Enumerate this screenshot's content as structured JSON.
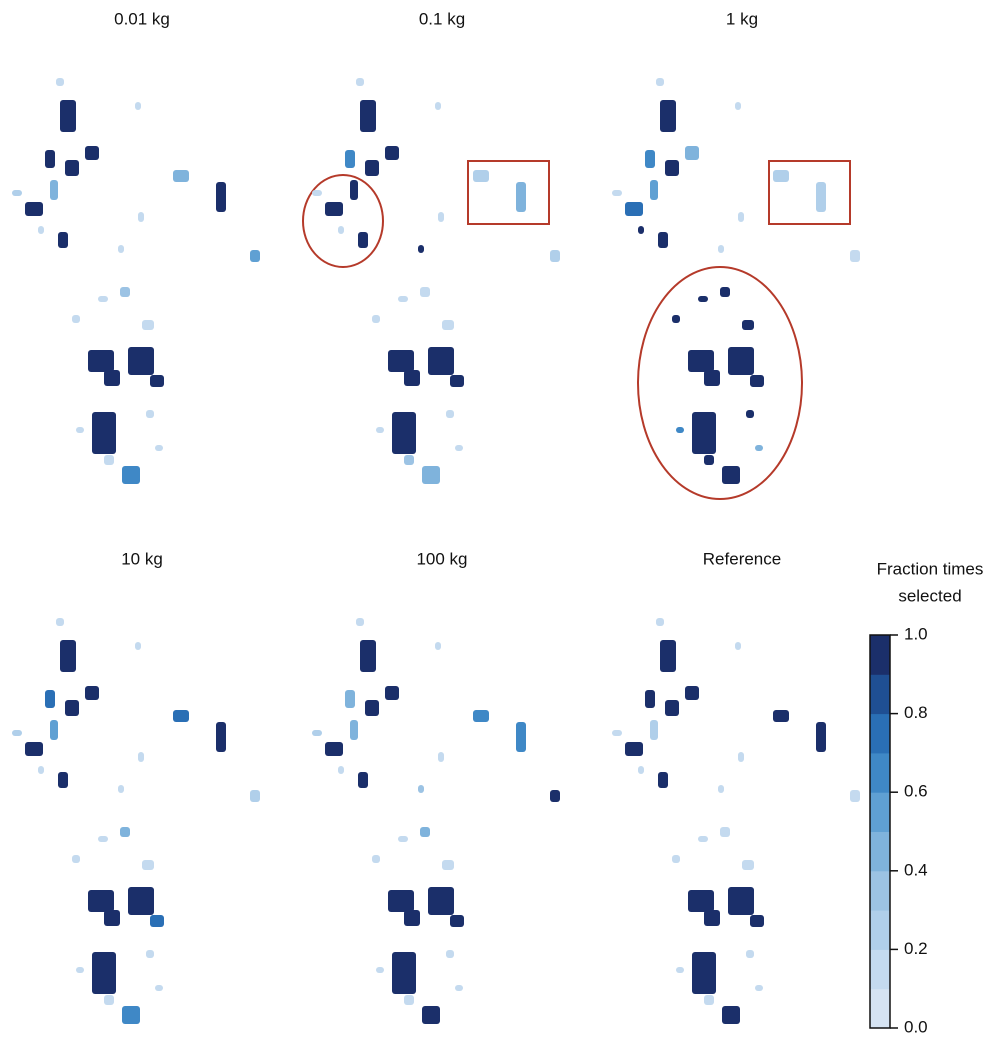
{
  "panels": [
    {
      "title": "0.01 kg",
      "values": [
        1,
        1,
        1,
        1,
        0.4,
        1,
        1,
        0.4,
        1,
        0.5,
        0.3,
        1,
        1,
        1,
        1,
        1,
        0.6,
        0.1,
        0.1,
        0.2,
        0.1,
        0.1,
        0.1,
        0.1,
        0.1,
        0.1,
        0.1,
        0.1,
        0.1,
        0.1
      ]
    },
    {
      "title": "0.1 kg",
      "values": [
        1,
        0.6,
        1,
        1,
        1,
        1,
        1,
        0.2,
        0.4,
        0.2,
        0.1,
        1,
        1,
        1,
        1,
        1,
        0.4,
        0.1,
        0.1,
        0.1,
        0.1,
        0.1,
        0.1,
        0.1,
        0.1,
        0.1,
        0.1,
        0.1,
        1,
        0.3
      ]
    },
    {
      "title": "1 kg",
      "values": [
        1,
        0.6,
        1,
        0.4,
        0.5,
        0.7,
        1,
        0.2,
        0.2,
        0.1,
        1,
        1,
        1,
        1,
        1,
        1,
        1,
        0.1,
        0.1,
        0.1,
        0.1,
        1,
        1,
        1,
        0.6,
        1,
        0.4,
        1,
        0.1,
        1
      ]
    },
    {
      "title": "10 kg",
      "values": [
        1,
        0.7,
        1,
        1,
        0.5,
        1,
        1,
        0.7,
        1,
        0.2,
        0.4,
        1,
        1,
        0.7,
        1,
        1,
        0.6,
        0.1,
        0.1,
        0.2,
        0.1,
        0.1,
        0.1,
        0.1,
        0.1,
        0.1,
        0.1,
        0.1,
        0.1,
        0.1
      ]
    },
    {
      "title": "100 kg",
      "values": [
        1,
        0.4,
        1,
        1,
        0.4,
        1,
        1,
        0.6,
        0.6,
        1,
        0.4,
        1,
        1,
        1,
        1,
        1,
        1,
        0.1,
        0.1,
        0.2,
        0.1,
        0.1,
        0.1,
        0.1,
        0.1,
        0.1,
        0.1,
        0.1,
        0.3,
        0.1
      ]
    },
    {
      "title": "Reference",
      "values": [
        1,
        1,
        1,
        1,
        0.2,
        1,
        1,
        1,
        1,
        0.1,
        0.1,
        1,
        1,
        1,
        1,
        1,
        1,
        0.1,
        0.1,
        0.1,
        0.1,
        0.1,
        0.1,
        0.1,
        0.1,
        0.1,
        0.1,
        0.1,
        0.1,
        0.1
      ]
    }
  ],
  "colorbar": {
    "title": [
      "Fraction times",
      "selected"
    ],
    "lim": [
      0,
      1
    ],
    "ticks": [
      {
        "value": 0,
        "label": "0.0"
      },
      {
        "value": 0.2,
        "label": "0.2"
      },
      {
        "value": 0.4,
        "label": "0.4"
      },
      {
        "value": 0.6,
        "label": "0.6"
      },
      {
        "value": 0.8,
        "label": "0.8"
      },
      {
        "value": 1,
        "label": "1.0"
      }
    ],
    "colors": [
      "#d6e4f3",
      "#c4daef",
      "#b0cfea",
      "#9cc3e4",
      "#7fb3dc",
      "#5fa0d3",
      "#3f88c6",
      "#2a6fb5",
      "#1f4f93",
      "#1b2f6a"
    ]
  }
}
